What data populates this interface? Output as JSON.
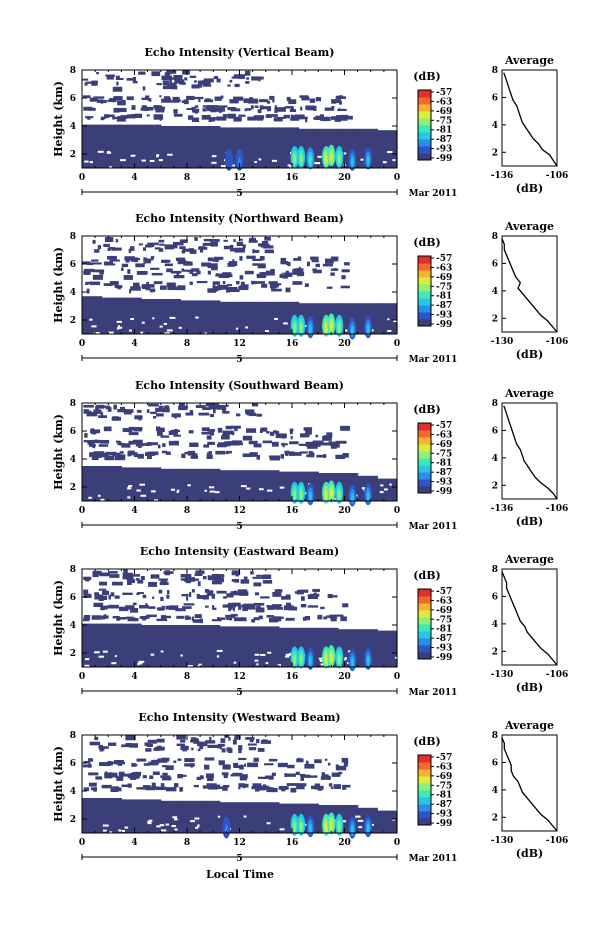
{
  "figure": {
    "xlabel": "Local Time",
    "date_label": "5",
    "month_label": "Mar 2011",
    "ylabel": "Height (km)",
    "colorbar_unit": "(dB)",
    "avg_title": "Average",
    "avg_xlabel": "(dB)"
  },
  "colors": {
    "background_echo": "#3a3f7a",
    "scale": [
      "#3a3f7a",
      "#2e54c8",
      "#2a8de8",
      "#28c6e6",
      "#3ee8b8",
      "#8ef07a",
      "#dcec3c",
      "#f6b232",
      "#f26a2e",
      "#e0302c"
    ]
  },
  "chart_data": [
    {
      "type": "heatmap",
      "title": "Echo Intensity (Vertical Beam)",
      "x_ticks": [
        "0",
        "4",
        "8",
        "12",
        "16",
        "20",
        "0"
      ],
      "y_ticks": [
        "2",
        "4",
        "6",
        "8"
      ],
      "xlim": [
        0,
        24
      ],
      "ylim": [
        1,
        8
      ],
      "colorbar_ticks": [
        "-57",
        "-63",
        "-69",
        "-75",
        "-81",
        "-87",
        "-93",
        "-99"
      ],
      "layer_top_km": [
        4.1,
        4.1,
        4.1,
        4.1,
        4.0,
        4.0,
        4.0,
        3.9,
        3.9,
        3.9,
        3.9,
        3.8,
        3.8,
        3.8,
        3.8,
        3.7
      ],
      "clutter_band_km": [
        [
          6.8,
          8.0
        ],
        [
          5.8,
          6.2
        ],
        [
          5.2,
          5.5
        ],
        [
          4.6,
          4.9
        ]
      ],
      "strong_cells": [
        {
          "t": 11.2,
          "h": 1.8,
          "db": -93
        },
        {
          "t": 12.0,
          "h": 1.8,
          "db": -90
        },
        {
          "t": 16.2,
          "h": 2.0,
          "db": -75
        },
        {
          "t": 16.7,
          "h": 2.0,
          "db": -78
        },
        {
          "t": 17.4,
          "h": 1.9,
          "db": -81
        },
        {
          "t": 18.6,
          "h": 2.0,
          "db": -72
        },
        {
          "t": 19.0,
          "h": 2.1,
          "db": -69
        },
        {
          "t": 19.6,
          "h": 2.0,
          "db": -78
        },
        {
          "t": 20.6,
          "h": 1.8,
          "db": -87
        },
        {
          "t": 21.8,
          "h": 1.9,
          "db": -84
        }
      ],
      "average_profile": {
        "title": "Average",
        "xlabel": "(dB)",
        "x_ticks": [
          "-136",
          "-106"
        ],
        "y_ticks": [
          "2",
          "4",
          "6",
          "8"
        ],
        "xlim": [
          -136,
          -106
        ],
        "ylim": [
          1,
          8
        ],
        "height_km": [
          1.0,
          1.4,
          1.8,
          2.2,
          2.6,
          3.0,
          3.4,
          3.8,
          4.2,
          4.6,
          5.0,
          5.4,
          5.8,
          6.2,
          6.6,
          7.0,
          7.4,
          7.8
        ],
        "db": [
          -106,
          -108,
          -110,
          -114,
          -116,
          -119,
          -121,
          -123,
          -125,
          -126,
          -127,
          -128,
          -130,
          -131,
          -132,
          -133,
          -134,
          -135
        ]
      }
    },
    {
      "type": "heatmap",
      "title": "Echo Intensity (Northward Beam)",
      "x_ticks": [
        "0",
        "4",
        "8",
        "12",
        "16",
        "20",
        "0"
      ],
      "y_ticks": [
        "2",
        "4",
        "6",
        "8"
      ],
      "xlim": [
        0,
        24
      ],
      "ylim": [
        1,
        8
      ],
      "colorbar_ticks": [
        "-57",
        "-63",
        "-69",
        "-75",
        "-81",
        "-87",
        "-93",
        "-99"
      ],
      "layer_top_km": [
        3.7,
        3.6,
        3.6,
        3.5,
        3.5,
        3.4,
        3.4,
        3.3,
        3.3,
        3.3,
        3.3,
        3.2,
        3.2,
        3.2,
        3.2,
        3.2
      ],
      "clutter_band_km": [
        [
          7.0,
          8.0
        ],
        [
          6.0,
          6.6
        ],
        [
          5.2,
          5.8
        ],
        [
          4.2,
          4.8
        ]
      ],
      "strong_cells": [
        {
          "t": 16.2,
          "h": 1.8,
          "db": -75
        },
        {
          "t": 16.7,
          "h": 1.8,
          "db": -78
        },
        {
          "t": 17.4,
          "h": 1.7,
          "db": -84
        },
        {
          "t": 18.6,
          "h": 1.8,
          "db": -72
        },
        {
          "t": 19.0,
          "h": 1.9,
          "db": -69
        },
        {
          "t": 19.6,
          "h": 1.8,
          "db": -78
        },
        {
          "t": 20.6,
          "h": 1.6,
          "db": -87
        },
        {
          "t": 21.8,
          "h": 1.7,
          "db": -84
        }
      ],
      "average_profile": {
        "title": "Average",
        "xlabel": "(dB)",
        "x_ticks": [
          "-130",
          "-106"
        ],
        "y_ticks": [
          "2",
          "4",
          "6",
          "8"
        ],
        "xlim": [
          -130,
          -106
        ],
        "ylim": [
          1,
          8
        ],
        "height_km": [
          1.0,
          1.4,
          1.8,
          2.2,
          2.6,
          3.0,
          3.4,
          3.8,
          4.2,
          4.6,
          5.0,
          5.4,
          5.8,
          6.2,
          6.6,
          7.0,
          7.4,
          7.8
        ],
        "db": [
          -106,
          -108,
          -110,
          -113,
          -115,
          -117,
          -119,
          -121,
          -123,
          -122,
          -124,
          -125,
          -126,
          -127,
          -128,
          -129,
          -129,
          -130
        ]
      }
    },
    {
      "type": "heatmap",
      "title": "Echo Intensity (Southward Beam)",
      "x_ticks": [
        "0",
        "4",
        "8",
        "12",
        "16",
        "20",
        "0"
      ],
      "y_ticks": [
        "2",
        "4",
        "6",
        "8"
      ],
      "xlim": [
        0,
        24
      ],
      "ylim": [
        1,
        8
      ],
      "colorbar_ticks": [
        "-57",
        "-63",
        "-69",
        "-75",
        "-81",
        "-87",
        "-93",
        "-99"
      ],
      "layer_top_km": [
        3.5,
        3.5,
        3.4,
        3.4,
        3.3,
        3.3,
        3.3,
        3.2,
        3.2,
        3.2,
        3.1,
        3.1,
        3.0,
        3.0,
        2.8,
        2.6
      ],
      "clutter_band_km": [
        [
          7.0,
          8.0
        ],
        [
          5.6,
          6.4
        ],
        [
          5.0,
          5.4
        ],
        [
          4.2,
          4.6
        ]
      ],
      "strong_cells": [
        {
          "t": 16.2,
          "h": 1.8,
          "db": -75
        },
        {
          "t": 16.7,
          "h": 1.8,
          "db": -78
        },
        {
          "t": 17.4,
          "h": 1.7,
          "db": -84
        },
        {
          "t": 18.6,
          "h": 1.8,
          "db": -72
        },
        {
          "t": 19.0,
          "h": 1.9,
          "db": -69
        },
        {
          "t": 19.6,
          "h": 1.8,
          "db": -78
        },
        {
          "t": 20.6,
          "h": 1.6,
          "db": -87
        },
        {
          "t": 21.8,
          "h": 1.7,
          "db": -84
        }
      ],
      "average_profile": {
        "title": "Average",
        "xlabel": "(dB)",
        "x_ticks": [
          "-136",
          "-106"
        ],
        "y_ticks": [
          "2",
          "4",
          "6",
          "8"
        ],
        "xlim": [
          -136,
          -106
        ],
        "ylim": [
          1,
          8
        ],
        "height_km": [
          1.0,
          1.4,
          1.8,
          2.2,
          2.6,
          3.0,
          3.4,
          3.8,
          4.2,
          4.6,
          5.0,
          5.4,
          5.8,
          6.2,
          6.6,
          7.0,
          7.4,
          7.8
        ],
        "db": [
          -106,
          -108,
          -111,
          -115,
          -118,
          -120,
          -122,
          -124,
          -125,
          -126,
          -128,
          -129,
          -130,
          -131,
          -132,
          -133,
          -134,
          -135
        ]
      }
    },
    {
      "type": "heatmap",
      "title": "Echo Intensity (Eastward Beam)",
      "x_ticks": [
        "0",
        "4",
        "8",
        "12",
        "16",
        "20",
        "0"
      ],
      "y_ticks": [
        "2",
        "4",
        "6",
        "8"
      ],
      "xlim": [
        0,
        24
      ],
      "ylim": [
        1,
        8
      ],
      "colorbar_ticks": [
        "-57",
        "-63",
        "-69",
        "-75",
        "-81",
        "-87",
        "-93",
        "-99"
      ],
      "layer_top_km": [
        4.1,
        4.1,
        4.1,
        4.0,
        4.0,
        4.0,
        4.0,
        3.9,
        3.9,
        3.9,
        3.8,
        3.8,
        3.8,
        3.7,
        3.7,
        3.6
      ],
      "clutter_band_km": [
        [
          7.0,
          8.0
        ],
        [
          6.0,
          6.6
        ],
        [
          5.2,
          5.6
        ],
        [
          4.4,
          4.8
        ]
      ],
      "strong_cells": [
        {
          "t": 16.2,
          "h": 1.9,
          "db": -75
        },
        {
          "t": 16.7,
          "h": 1.9,
          "db": -78
        },
        {
          "t": 17.4,
          "h": 1.8,
          "db": -84
        },
        {
          "t": 18.6,
          "h": 1.9,
          "db": -72
        },
        {
          "t": 19.0,
          "h": 2.0,
          "db": -69
        },
        {
          "t": 19.6,
          "h": 1.9,
          "db": -78
        },
        {
          "t": 20.6,
          "h": 1.7,
          "db": -87
        },
        {
          "t": 21.8,
          "h": 1.8,
          "db": -84
        }
      ],
      "average_profile": {
        "title": "Average",
        "xlabel": "(dB)",
        "x_ticks": [
          "-130",
          "-106"
        ],
        "y_ticks": [
          "2",
          "4",
          "6",
          "8"
        ],
        "xlim": [
          -130,
          -106
        ],
        "ylim": [
          1,
          8
        ],
        "height_km": [
          1.0,
          1.4,
          1.8,
          2.2,
          2.6,
          3.0,
          3.4,
          3.8,
          4.2,
          4.6,
          5.0,
          5.4,
          5.8,
          6.2,
          6.6,
          7.0,
          7.4,
          7.8
        ],
        "db": [
          -106,
          -108,
          -110,
          -113,
          -115,
          -117,
          -119,
          -120,
          -122,
          -123,
          -124,
          -125,
          -126,
          -127,
          -128,
          -128,
          -129,
          -130
        ]
      }
    },
    {
      "type": "heatmap",
      "title": "Echo Intensity (Westward Beam)",
      "x_ticks": [
        "0",
        "4",
        "8",
        "12",
        "16",
        "20",
        "0"
      ],
      "y_ticks": [
        "2",
        "4",
        "6",
        "8"
      ],
      "xlim": [
        0,
        24
      ],
      "ylim": [
        1,
        8
      ],
      "colorbar_ticks": [
        "-57",
        "-63",
        "-69",
        "-75",
        "-81",
        "-87",
        "-93",
        "-99"
      ],
      "layer_top_km": [
        3.5,
        3.5,
        3.4,
        3.4,
        3.3,
        3.3,
        3.3,
        3.2,
        3.2,
        3.2,
        3.1,
        3.1,
        3.0,
        3.0,
        2.8,
        2.6
      ],
      "clutter_band_km": [
        [
          7.0,
          8.0
        ],
        [
          5.8,
          6.4
        ],
        [
          5.0,
          5.4
        ],
        [
          4.2,
          4.6
        ]
      ],
      "strong_cells": [
        {
          "t": 11.0,
          "h": 1.6,
          "db": -90
        },
        {
          "t": 16.2,
          "h": 1.8,
          "db": -75
        },
        {
          "t": 16.7,
          "h": 1.8,
          "db": -78
        },
        {
          "t": 17.4,
          "h": 1.7,
          "db": -84
        },
        {
          "t": 18.6,
          "h": 1.8,
          "db": -72
        },
        {
          "t": 19.0,
          "h": 1.9,
          "db": -69
        },
        {
          "t": 19.6,
          "h": 1.8,
          "db": -78
        },
        {
          "t": 20.6,
          "h": 1.6,
          "db": -87
        },
        {
          "t": 21.8,
          "h": 1.7,
          "db": -84
        }
      ],
      "average_profile": {
        "title": "Average",
        "xlabel": "(dB)",
        "x_ticks": [
          "-130",
          "-106"
        ],
        "y_ticks": [
          "2",
          "4",
          "6",
          "8"
        ],
        "xlim": [
          -130,
          -106
        ],
        "ylim": [
          1,
          8
        ],
        "height_km": [
          1.0,
          1.4,
          1.8,
          2.2,
          2.6,
          3.0,
          3.4,
          3.8,
          4.2,
          4.6,
          5.0,
          5.4,
          5.8,
          6.2,
          6.6,
          7.0,
          7.4,
          7.8
        ],
        "db": [
          -106,
          -108,
          -110,
          -113,
          -115,
          -117,
          -119,
          -121,
          -122,
          -123,
          -125,
          -126,
          -126,
          -127,
          -128,
          -129,
          -129,
          -130
        ]
      }
    }
  ]
}
